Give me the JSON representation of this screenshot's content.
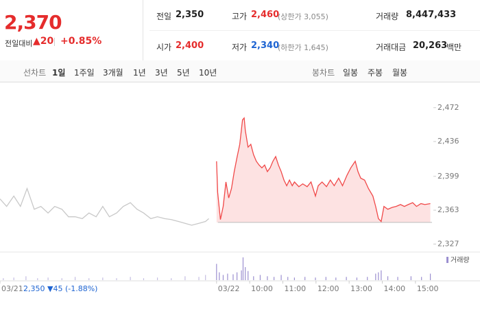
{
  "quote": {
    "price": "2,370",
    "change_label": "전일대비",
    "change": "▲20",
    "change_pct": "+0.85%",
    "items": [
      {
        "label": "전일",
        "value": "2,350"
      },
      {
        "label": "고가",
        "value": "2,460",
        "note": "(상한가 3,055)"
      },
      {
        "label": "거래량",
        "value": "8,447,433"
      },
      {
        "label": "시가",
        "value": "2,400"
      },
      {
        "label": "저가",
        "value": "2,340",
        "note": "(하한가 1,645)"
      },
      {
        "label": "거래대금",
        "value": "20,263",
        "unit": "백만"
      }
    ]
  },
  "tabs": {
    "line_label": "선차트",
    "line": [
      "1일",
      "1주일",
      "3개월",
      "1년",
      "3년",
      "5년",
      "10년"
    ],
    "selected": 0,
    "candle_label": "봉차트",
    "candle": [
      "일봉",
      "주봉",
      "월봉"
    ]
  },
  "chart_data": {
    "type": "line",
    "series": [
      {
        "color": "#c8c8c8",
        "x": [
          -392,
          -380,
          -367,
          -355,
          -343,
          -330,
          -318,
          -305,
          -293,
          -280,
          -268,
          -256,
          -243,
          -231,
          -218,
          -206,
          -194,
          -181,
          -169,
          -156,
          -144,
          -132,
          -119,
          -107,
          -94,
          -82,
          -69,
          -57,
          -45,
          -32,
          -20,
          -14
        ],
        "values": [
          2375,
          2367,
          2378,
          2367,
          2386,
          2364,
          2367,
          2360,
          2367,
          2364,
          2356,
          2356,
          2354,
          2360,
          2356,
          2367,
          2356,
          2360,
          2367,
          2371,
          2364,
          2360,
          2354,
          2356,
          2354,
          2353,
          2351,
          2349,
          2347,
          2349,
          2351,
          2354
        ]
      },
      {
        "color": "#f04848",
        "fill": "#fde2e2",
        "x": [
          0,
          2,
          7,
          12,
          17,
          22,
          27,
          32,
          37,
          42,
          47,
          50,
          52,
          57,
          62,
          67,
          72,
          77,
          82,
          87,
          92,
          97,
          102,
          107,
          112,
          117,
          122,
          127,
          132,
          137,
          141,
          149,
          156,
          164,
          171,
          179,
          184,
          191,
          199,
          206,
          213,
          221,
          228,
          236,
          243,
          251,
          256,
          261,
          268,
          275,
          283,
          288,
          293,
          298,
          303,
          310,
          318,
          325,
          333,
          340,
          347,
          355,
          362,
          370,
          377,
          387
        ],
        "values": [
          2415,
          2382,
          2353,
          2367,
          2393,
          2376,
          2386,
          2404,
          2419,
          2433,
          2459,
          2461,
          2448,
          2430,
          2433,
          2422,
          2415,
          2411,
          2408,
          2411,
          2404,
          2408,
          2415,
          2420,
          2411,
          2404,
          2395,
          2389,
          2395,
          2389,
          2393,
          2388,
          2391,
          2388,
          2393,
          2378,
          2389,
          2393,
          2388,
          2395,
          2389,
          2397,
          2389,
          2400,
          2408,
          2415,
          2404,
          2397,
          2395,
          2386,
          2378,
          2367,
          2354,
          2351,
          2367,
          2364,
          2366,
          2367,
          2369,
          2367,
          2369,
          2371,
          2367,
          2370,
          2369,
          2370
        ]
      }
    ],
    "baseline": 2350,
    "xlim": [
      -392,
      390
    ],
    "xticks": [
      {
        "value": -392,
        "label": "03/21"
      },
      {
        "value": 0,
        "label": "03/22"
      },
      {
        "value": 60,
        "label": "10:00"
      },
      {
        "value": 120,
        "label": "11:00"
      },
      {
        "value": 180,
        "label": "12:00"
      },
      {
        "value": 240,
        "label": "13:00"
      },
      {
        "value": 300,
        "label": "14:00"
      },
      {
        "value": 360,
        "label": "15:00"
      }
    ],
    "ylim": [
      2320,
      2493
    ],
    "yticks": [
      {
        "value": 2472,
        "label": "2,472"
      },
      {
        "value": 2436,
        "label": "2,436"
      },
      {
        "value": 2399,
        "label": "2,399"
      },
      {
        "value": 2363,
        "label": "2,363"
      },
      {
        "value": 2327,
        "label": "2,327"
      }
    ],
    "annotation": "2,350 ▼45 (-1.88%)",
    "volume": {
      "name": "거래량",
      "color": "#9b8fd0",
      "ylim": [
        0,
        40
      ],
      "x": [
        -386,
        -367,
        -345,
        -324,
        -305,
        -280,
        -256,
        -231,
        -206,
        -181,
        -156,
        -132,
        -107,
        -82,
        -57,
        -32,
        -20,
        0,
        5,
        12,
        20,
        30,
        37,
        45,
        48,
        52,
        57,
        67,
        79,
        92,
        104,
        117,
        129,
        141,
        160,
        179,
        198,
        216,
        235,
        254,
        273,
        288,
        293,
        298,
        310,
        328,
        352,
        371,
        387
      ],
      "values": [
        3,
        4,
        6,
        3,
        4,
        3,
        5,
        3,
        4,
        3,
        5,
        3,
        4,
        3,
        6,
        5,
        8,
        25,
        12,
        8,
        10,
        9,
        12,
        15,
        35,
        20,
        14,
        6,
        8,
        6,
        5,
        8,
        5,
        4,
        5,
        4,
        5,
        4,
        5,
        4,
        5,
        10,
        12,
        15,
        6,
        5,
        6,
        5,
        10
      ]
    }
  }
}
